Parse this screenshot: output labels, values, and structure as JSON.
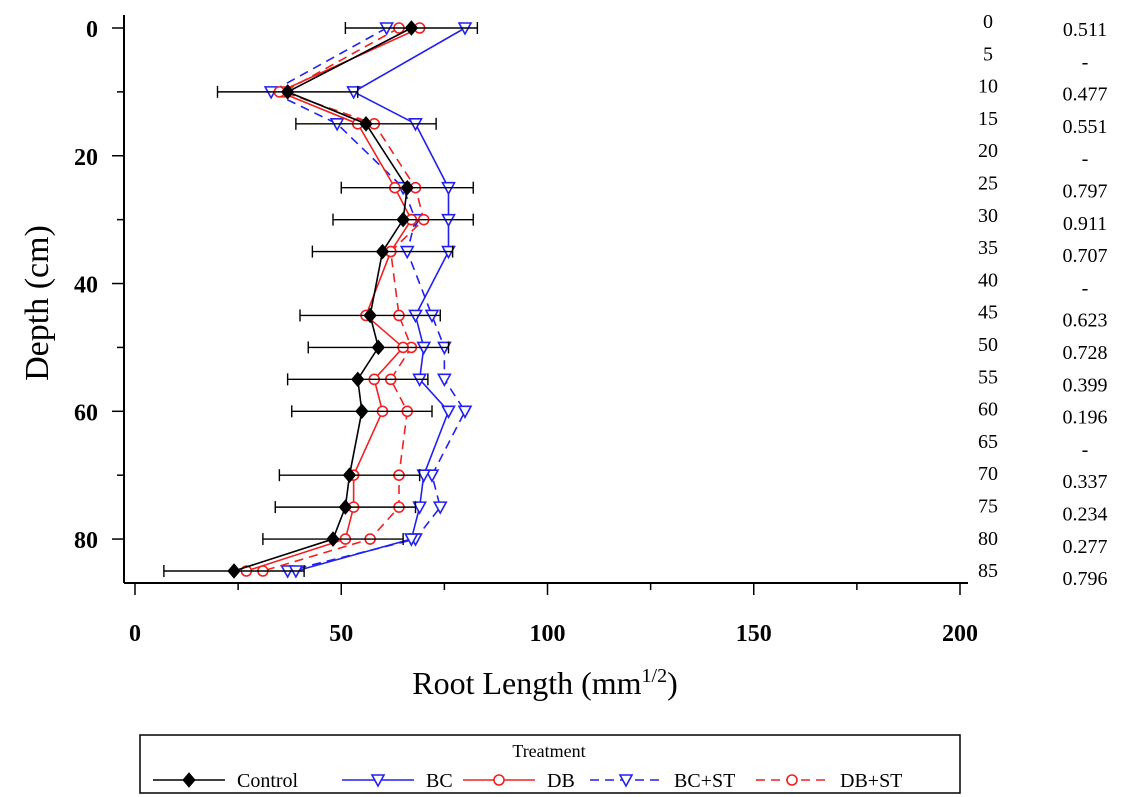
{
  "chart_data": {
    "type": "line",
    "orientation": "depth-profile",
    "xlabel_main": "Root Length (mm",
    "xlabel_sup": "1/2",
    "xlabel_end": ")",
    "ylabel": "Depth (cm)",
    "xlim": [
      0,
      200
    ],
    "ylim": [
      0,
      85
    ],
    "y_inverted": true,
    "x_ticks": [
      0,
      50,
      100,
      150,
      200
    ],
    "y_ticks": [
      0,
      20,
      40,
      60,
      80
    ],
    "depths": [
      0,
      10,
      15,
      25,
      30,
      35,
      45,
      50,
      55,
      60,
      70,
      75,
      80,
      85
    ],
    "series": [
      {
        "name": "Control",
        "color": "#000000",
        "dash": false,
        "marker": "diamond",
        "values": [
          67,
          37,
          56,
          66,
          65,
          60,
          57,
          59,
          54,
          55,
          52,
          51,
          48,
          24
        ],
        "err": [
          16,
          17,
          17,
          16,
          17,
          17,
          17,
          17,
          17,
          17,
          17,
          17,
          17,
          17
        ]
      },
      {
        "name": "BC",
        "color": "#2222ee",
        "dash": false,
        "marker": "triangle-down",
        "values": [
          80,
          53,
          68,
          76,
          76,
          76,
          68,
          70,
          69,
          76,
          70,
          69,
          67,
          39
        ]
      },
      {
        "name": "DB",
        "color": "#ee2222",
        "dash": false,
        "marker": "circle",
        "values": [
          69,
          35,
          54,
          63,
          67,
          62,
          56,
          65,
          58,
          60,
          53,
          53,
          51,
          27
        ]
      },
      {
        "name": "BC+ST",
        "color": "#2222ee",
        "dash": true,
        "marker": "triangle-down",
        "values": [
          61,
          33,
          49,
          65,
          68,
          66,
          72,
          75,
          75,
          80,
          72,
          74,
          68,
          37
        ]
      },
      {
        "name": "DB+ST",
        "color": "#ee2222",
        "dash": true,
        "marker": "circle",
        "values": [
          64,
          36,
          58,
          68,
          70,
          62,
          64,
          67,
          62,
          66,
          64,
          64,
          57,
          31
        ]
      }
    ],
    "legend_title": "Treatment",
    "legend_position": "bottom",
    "depth_labels": [
      "0",
      "5",
      "10",
      "15",
      "20",
      "25",
      "30",
      "35",
      "40",
      "45",
      "50",
      "55",
      "60",
      "65",
      "70",
      "75",
      "80",
      "85"
    ],
    "p_values": [
      "0.511",
      "-",
      "0.477",
      "0.551",
      "-",
      "0.797",
      "0.911",
      "0.707",
      "-",
      "0.623",
      "0.728",
      "0.399",
      "0.196",
      "-",
      "0.337",
      "0.234",
      "0.277",
      "0.796"
    ]
  }
}
